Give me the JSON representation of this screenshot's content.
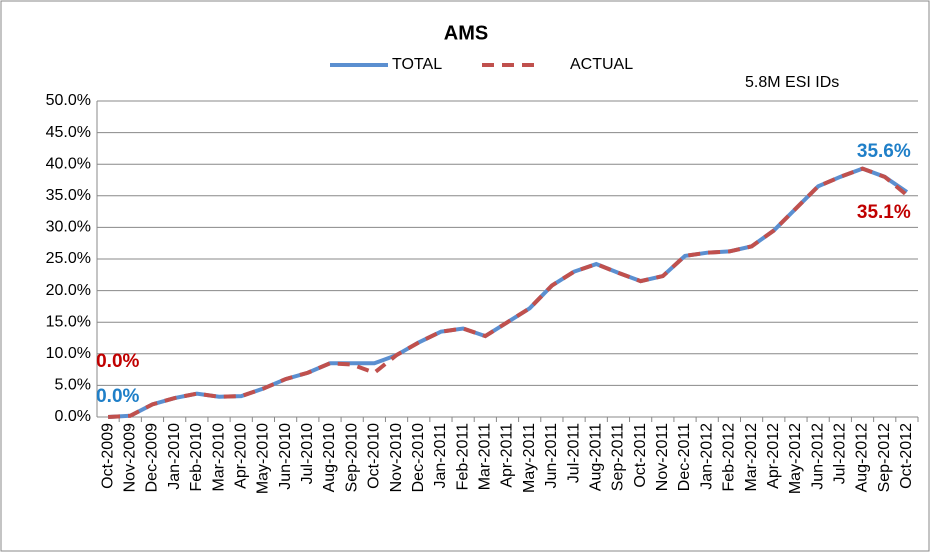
{
  "chart_data": {
    "type": "line",
    "title": "AMS",
    "annotation": "5.8M ESI IDs",
    "categories": [
      "Oct-2009",
      "Nov-2009",
      "Dec-2009",
      "Jan-2010",
      "Feb-2010",
      "Mar-2010",
      "Apr-2010",
      "May-2010",
      "Jun-2010",
      "Jul-2010",
      "Aug-2010",
      "Sep-2010",
      "Oct-2010",
      "Nov-2010",
      "Dec-2010",
      "Jan-2011",
      "Feb-2011",
      "Mar-2011",
      "Apr-2011",
      "May-2011",
      "Jun-2011",
      "Jul-2011",
      "Aug-2011",
      "Sep-2011",
      "Oct-2011",
      "Nov-2011",
      "Dec-2011",
      "Jan-2012",
      "Feb-2012",
      "Mar-2012",
      "Apr-2012",
      "May-2012",
      "Jun-2012",
      "Jul-2012",
      "Aug-2012",
      "Sep-2012",
      "Oct-2012"
    ],
    "series": [
      {
        "name": "TOTAL",
        "color": "#5b8fd0",
        "dashed": false,
        "label_color": "#1f7fc8",
        "values": [
          0,
          0.2,
          2.0,
          3.0,
          3.7,
          3.2,
          3.3,
          4.5,
          6.0,
          7.0,
          8.5,
          8.5,
          8.5,
          9.8,
          11.8,
          13.5,
          14.0,
          12.8,
          15.0,
          17.2,
          20.8,
          23.0,
          24.2,
          22.8,
          21.5,
          22.3,
          25.5,
          26.0,
          26.2,
          27.0,
          29.5,
          33.0,
          36.5,
          38.0,
          39.3,
          38.0,
          35.6
        ],
        "value_labels": [
          "0.0%",
          null,
          null,
          null,
          null,
          null,
          null,
          null,
          null,
          null,
          null,
          null,
          null,
          null,
          null,
          null,
          null,
          null,
          null,
          null,
          null,
          null,
          null,
          null,
          null,
          null,
          null,
          null,
          null,
          null,
          null,
          null,
          null,
          null,
          null,
          null,
          "35.6%"
        ]
      },
      {
        "name": "ACTUAL",
        "color": "#c0504d",
        "dashed": true,
        "label_color": "#c00000",
        "values": [
          0,
          0.2,
          2.0,
          3.0,
          3.7,
          3.2,
          3.3,
          4.5,
          6.0,
          7.0,
          8.5,
          8.3,
          7.0,
          9.8,
          11.8,
          13.5,
          14.0,
          12.8,
          15.0,
          17.2,
          20.8,
          23.0,
          24.2,
          22.8,
          21.5,
          22.3,
          25.5,
          26.0,
          26.2,
          27.0,
          29.5,
          33.0,
          36.5,
          38.0,
          39.3,
          38.0,
          35.1
        ],
        "value_labels": [
          "0.0%",
          null,
          null,
          null,
          null,
          null,
          null,
          null,
          null,
          null,
          null,
          null,
          null,
          null,
          null,
          null,
          null,
          null,
          null,
          null,
          null,
          null,
          null,
          null,
          null,
          null,
          null,
          null,
          null,
          null,
          null,
          null,
          null,
          null,
          null,
          null,
          "35.1%"
        ]
      }
    ],
    "ylim": [
      0,
      50
    ],
    "yticks": [
      {
        "value": 0,
        "label": "0.0%"
      },
      {
        "value": 5,
        "label": "5.0%"
      },
      {
        "value": 10,
        "label": "10.0%"
      },
      {
        "value": 15,
        "label": "15.0%"
      },
      {
        "value": 20,
        "label": "20.0%"
      },
      {
        "value": 25,
        "label": "25.0%"
      },
      {
        "value": 30,
        "label": "30.0%"
      },
      {
        "value": 35,
        "label": "35.0%"
      },
      {
        "value": 40,
        "label": "40.0%"
      },
      {
        "value": 45,
        "label": "45.0%"
      },
      {
        "value": 50,
        "label": "50.0%"
      }
    ],
    "grid": true,
    "legend": "top"
  }
}
